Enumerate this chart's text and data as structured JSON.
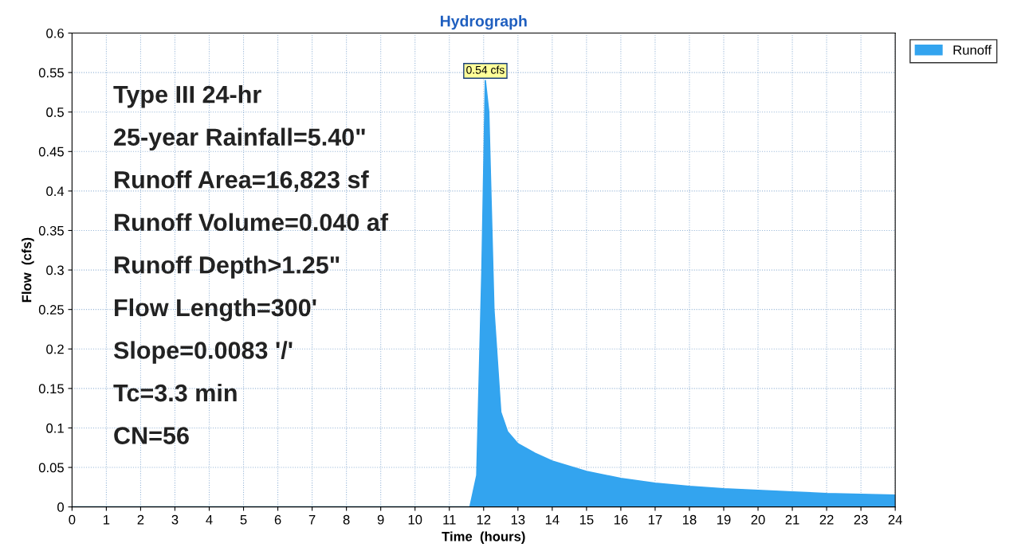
{
  "chart_data": {
    "type": "area",
    "title": "Hydrograph",
    "xlabel": "Time  (hours)",
    "ylabel": "Flow  (cfs)",
    "x": [
      0,
      11.6,
      11.8,
      11.95,
      12.05,
      12.15,
      12.3,
      12.5,
      12.7,
      13,
      13.5,
      14,
      15,
      16,
      17,
      18,
      19,
      20,
      21,
      22,
      23,
      24
    ],
    "series": [
      {
        "name": "Runoff",
        "color": "#33a4ef",
        "values": [
          0,
          0,
          0.04,
          0.3,
          0.54,
          0.5,
          0.25,
          0.12,
          0.095,
          0.08,
          0.068,
          0.058,
          0.045,
          0.036,
          0.03,
          0.026,
          0.023,
          0.021,
          0.019,
          0.017,
          0.016,
          0.015
        ]
      }
    ],
    "xlim": [
      0,
      24
    ],
    "xticks": [
      0,
      1,
      2,
      3,
      4,
      5,
      6,
      7,
      8,
      9,
      10,
      11,
      12,
      13,
      14,
      15,
      16,
      17,
      18,
      19,
      20,
      21,
      22,
      23,
      24
    ],
    "ylim": [
      0,
      0.6
    ],
    "yticks": [
      0,
      0.05,
      0.1,
      0.15,
      0.2,
      0.25,
      0.3,
      0.35,
      0.4,
      0.45,
      0.5,
      0.55,
      0.6
    ],
    "grid": true,
    "legend": "top right",
    "annotations": [
      {
        "text": "0.54 cfs",
        "x": 12.05,
        "y": 0.54
      },
      "Type III 24-hr",
      "25-year Rainfall=5.40\"",
      "Runoff Area=16,823 sf",
      "Runoff Volume=0.040 af",
      "Runoff Depth>1.25\"",
      "Flow Length=300'",
      "Slope=0.0083 '/'",
      "Tc=3.3 min",
      "CN=56"
    ]
  }
}
